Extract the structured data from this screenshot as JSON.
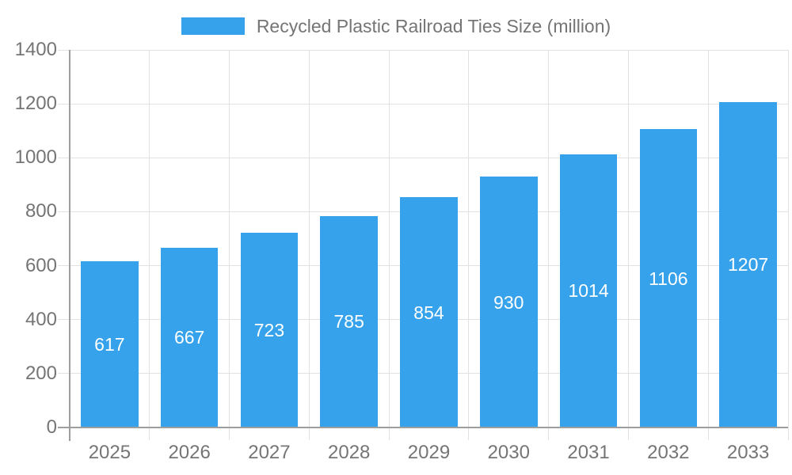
{
  "chart_data": {
    "type": "bar",
    "title": "Recycled Plastic Railroad Ties Size (million)",
    "categories": [
      "2025",
      "2026",
      "2027",
      "2028",
      "2029",
      "2030",
      "2031",
      "2032",
      "2033"
    ],
    "values": [
      617,
      667,
      723,
      785,
      854,
      930,
      1014,
      1106,
      1207
    ],
    "xlabel": "",
    "ylabel": "",
    "ylim": [
      0,
      1400
    ],
    "y_ticks": [
      0,
      200,
      400,
      600,
      800,
      1000,
      1200,
      1400
    ],
    "grid": true,
    "legend_position": "top",
    "value_labels": "inside-center",
    "colors": {
      "bar": "#36A2EB",
      "value_label": "#ffffff",
      "tick_text": "#757575",
      "legend_text": "#757575",
      "gridline": "#e2e2e2",
      "axis_line": "#9e9e9e",
      "background": "#ffffff"
    }
  }
}
